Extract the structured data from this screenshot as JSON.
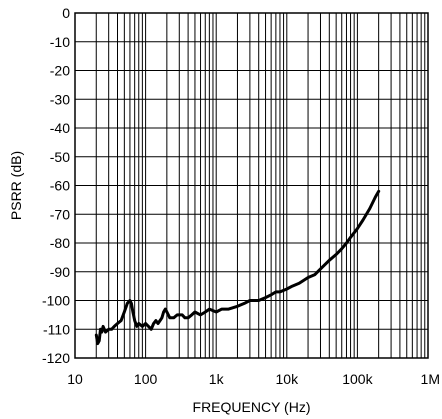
{
  "chart_data": {
    "type": "line",
    "title": "",
    "xlabel": "FREQUENCY (Hz)",
    "ylabel": "PSRR (dB)",
    "x_scale": "log",
    "xlim": [
      10,
      1000000
    ],
    "ylim": [
      -120,
      0
    ],
    "grid": true,
    "x_ticks": [
      10,
      100,
      1000,
      10000,
      100000,
      1000000
    ],
    "x_tick_labels": [
      "10",
      "100",
      "1k",
      "10k",
      "100k",
      "1M"
    ],
    "y_ticks": [
      0,
      -10,
      -20,
      -30,
      -40,
      -50,
      -60,
      -70,
      -80,
      -90,
      -100,
      -110,
      -120
    ],
    "y_tick_labels": [
      "0",
      "-10",
      "-20",
      "-30",
      "-40",
      "-50",
      "-60",
      "-70",
      "-80",
      "-90",
      "-100",
      "-110",
      "-120"
    ],
    "series": [
      {
        "x": [
          20,
          21,
          22,
          23,
          24,
          25,
          27,
          30,
          33,
          36,
          40,
          45,
          50,
          55,
          60,
          63,
          66,
          70,
          75,
          80,
          90,
          100,
          110,
          120,
          130,
          140,
          150,
          160,
          170,
          180,
          190,
          200,
          220,
          250,
          280,
          300,
          330,
          360,
          400,
          450,
          500,
          600,
          700,
          800,
          1000,
          1200,
          1500,
          2000,
          2500,
          3000,
          4000,
          5000,
          6000,
          7000,
          8000,
          10000,
          12000,
          15000,
          20000,
          25000,
          30000,
          40000,
          50000,
          60000,
          70000,
          80000,
          100000,
          120000,
          150000,
          180000,
          200000
        ],
        "y": [
          -112,
          -115,
          -114,
          -110,
          -111,
          -109,
          -111,
          -110,
          -110,
          -109,
          -108,
          -107,
          -104,
          -101,
          -100,
          -101,
          -104,
          -107,
          -109,
          -108,
          -109,
          -108,
          -109,
          -110,
          -108,
          -107,
          -108,
          -107,
          -106,
          -104,
          -103,
          -104,
          -106,
          -106,
          -105,
          -105,
          -105,
          -106,
          -106,
          -105,
          -104,
          -105,
          -104,
          -103,
          -104,
          -103,
          -103,
          -102,
          -101,
          -100,
          -100,
          -99,
          -98,
          -97,
          -97,
          -96,
          -95,
          -94,
          -92,
          -91,
          -89,
          -86,
          -84,
          -82,
          -80,
          -78,
          -75,
          -72,
          -68,
          -64,
          -62
        ]
      }
    ]
  }
}
